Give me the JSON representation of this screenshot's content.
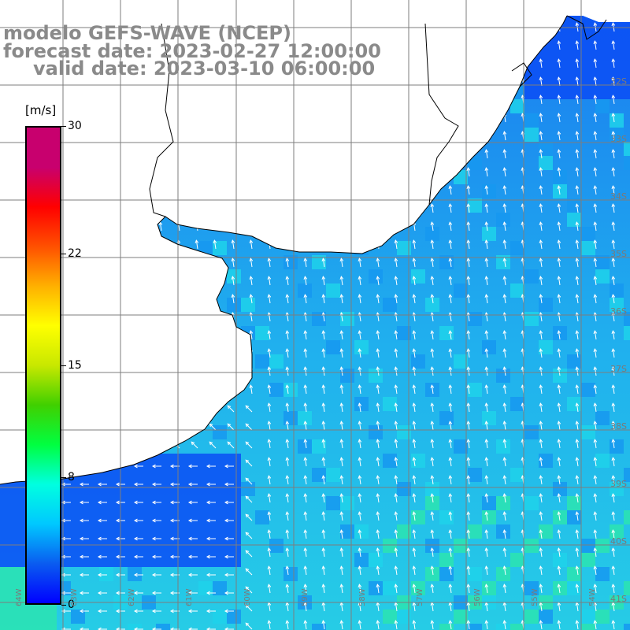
{
  "title": {
    "model": "modelo GEFS-WAVE (NCEP)",
    "forecast": "forecast date: 2023-02-27 12:00:00",
    "valid": "valid date: 2023-03-10 06:00:00"
  },
  "colorbar": {
    "units": "[m/s]",
    "ticks": [
      {
        "label": "30",
        "value": 30
      },
      {
        "label": "22",
        "value": 22
      },
      {
        "label": "15",
        "value": 15
      },
      {
        "label": "8",
        "value": 8
      },
      {
        "label": "0",
        "value": 0
      }
    ],
    "range": [
      0,
      30
    ],
    "colors": [
      "#0000ff",
      "#0a5cf0",
      "#00c8ff",
      "#00ffe0",
      "#00ff40",
      "#40d000",
      "#c8e800",
      "#ffff00",
      "#ffb000",
      "#ff5000",
      "#ff0000",
      "#c8006e",
      "#c8006e"
    ]
  },
  "lat_labels": [
    "32S",
    "33S",
    "34S",
    "35S",
    "36S",
    "37S",
    "38S",
    "39S",
    "40S",
    "41S"
  ],
  "lon_labels": [
    "64W",
    "63W",
    "62W",
    "61W",
    "60W",
    "59W",
    "58W",
    "57W",
    "56W",
    "55W",
    "54W"
  ],
  "colors": {
    "land": "#ffffff",
    "coast": "#000000",
    "grid": "#7d7d7d",
    "wind_dark": "#0a4ef5",
    "wind_mid": "#1698f0",
    "wind_light": "#1ed2ea",
    "wind_green": "#2ce4b0",
    "arrow": "#ffffff"
  },
  "icons": {
    "wind_arrow": "arrow-icon"
  }
}
